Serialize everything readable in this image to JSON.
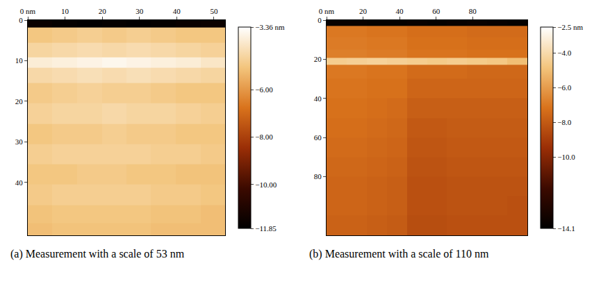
{
  "chart_data": [
    {
      "type": "heatmap",
      "title": "(a) Measurement with a scale of 53 nm",
      "x": [
        3.3,
        9.9,
        16.6,
        23.2,
        29.8,
        36.4,
        43.1,
        49.7
      ],
      "y": [
        0.5,
        3,
        8,
        10.5,
        13,
        18,
        23,
        28,
        33,
        38,
        43,
        48,
        52
      ],
      "z": [
        [
          -11.6,
          -11.7,
          -11.8,
          -11.7,
          -11.8,
          -11.7,
          -11.6,
          -11.5
        ],
        [
          -5.0,
          -4.9,
          -4.8,
          -4.9,
          -4.8,
          -4.9,
          -5.0,
          -5.0
        ],
        [
          -4.6,
          -4.5,
          -4.4,
          -4.5,
          -4.4,
          -4.5,
          -4.6,
          -4.7
        ],
        [
          -3.9,
          -3.8,
          -3.7,
          -3.6,
          -3.7,
          -3.8,
          -3.9,
          -4.1
        ],
        [
          -4.5,
          -4.4,
          -4.3,
          -4.4,
          -4.3,
          -4.4,
          -4.5,
          -4.6
        ],
        [
          -4.9,
          -4.8,
          -4.7,
          -4.8,
          -4.8,
          -4.9,
          -5.0,
          -5.0
        ],
        [
          -4.7,
          -4.6,
          -4.6,
          -4.5,
          -4.6,
          -4.6,
          -4.7,
          -4.8
        ],
        [
          -5.0,
          -4.9,
          -4.9,
          -4.8,
          -4.9,
          -4.9,
          -5.0,
          -5.0
        ],
        [
          -4.8,
          -4.7,
          -4.7,
          -4.7,
          -4.7,
          -4.8,
          -4.8,
          -4.9
        ],
        [
          -5.0,
          -5.0,
          -4.9,
          -4.9,
          -5.0,
          -5.0,
          -5.1,
          -5.1
        ],
        [
          -4.9,
          -4.8,
          -4.8,
          -4.8,
          -4.8,
          -4.9,
          -4.9,
          -5.0
        ],
        [
          -5.1,
          -5.0,
          -5.0,
          -5.0,
          -5.0,
          -5.1,
          -5.1,
          -5.2
        ],
        [
          -5.2,
          -5.1,
          -5.1,
          -5.1,
          -5.1,
          -5.2,
          -5.2,
          -5.2
        ]
      ],
      "xlim": [
        0,
        53
      ],
      "ylim": [
        53,
        0
      ],
      "xticks": [
        {
          "value": 0,
          "label": "0 nm"
        },
        10,
        20,
        30,
        40,
        50
      ],
      "yticks": [
        0,
        10,
        20,
        30,
        40
      ],
      "colorbar": {
        "range": [
          -11.85,
          -3.36
        ],
        "ticks": [
          {
            "value": -3.36,
            "label": "−3.36 nm"
          },
          {
            "value": -6,
            "label": "−6.00"
          },
          {
            "value": -8,
            "label": "−8.00"
          },
          {
            "value": -10,
            "label": "−10.00"
          },
          {
            "value": -11.85,
            "label": "−11.85"
          }
        ]
      }
    },
    {
      "type": "heatmap",
      "title": "(b) Measurement with a scale of 110 nm",
      "x": [
        5.5,
        16.5,
        27.5,
        38.5,
        49.5,
        60.5,
        71.5,
        82.5,
        93.5,
        104.5
      ],
      "y": [
        0.8,
        5,
        12,
        18,
        20.5,
        25,
        35,
        45,
        55,
        65,
        75,
        85,
        95,
        105
      ],
      "z": [
        [
          -13.8,
          -13.8,
          -13.9,
          -13.9,
          -13.8,
          -13.9,
          -13.8,
          -13.7,
          -13.8,
          -13.9
        ],
        [
          -7.0,
          -7.0,
          -7.1,
          -7.1,
          -7.3,
          -7.3,
          -7.3,
          -7.4,
          -7.4,
          -7.4
        ],
        [
          -6.9,
          -6.9,
          -7.0,
          -7.0,
          -7.2,
          -7.2,
          -7.2,
          -7.3,
          -7.3,
          -7.3
        ],
        [
          -6.8,
          -6.8,
          -6.9,
          -6.9,
          -7.1,
          -7.1,
          -7.1,
          -7.2,
          -7.2,
          -7.2
        ],
        [
          -4.5,
          -4.4,
          -4.3,
          -4.4,
          -4.5,
          -4.6,
          -4.5,
          -4.6,
          -4.7,
          -5.0
        ],
        [
          -7.0,
          -7.0,
          -7.1,
          -7.1,
          -7.4,
          -7.4,
          -7.4,
          -7.5,
          -7.5,
          -7.5
        ],
        [
          -7.1,
          -7.1,
          -7.2,
          -7.2,
          -7.6,
          -7.6,
          -7.6,
          -7.6,
          -7.6,
          -7.6
        ],
        [
          -7.2,
          -7.2,
          -7.3,
          -7.4,
          -7.8,
          -7.8,
          -7.8,
          -7.8,
          -7.8,
          -7.8
        ],
        [
          -7.3,
          -7.3,
          -7.4,
          -7.5,
          -8.0,
          -8.0,
          -7.9,
          -7.9,
          -7.9,
          -7.9
        ],
        [
          -7.4,
          -7.4,
          -7.5,
          -7.6,
          -8.1,
          -8.1,
          -8.0,
          -8.0,
          -8.0,
          -8.0
        ],
        [
          -7.5,
          -7.5,
          -7.6,
          -7.7,
          -8.2,
          -8.2,
          -8.1,
          -8.1,
          -8.1,
          -8.1
        ],
        [
          -7.6,
          -7.6,
          -7.7,
          -7.8,
          -8.3,
          -8.3,
          -8.2,
          -8.2,
          -8.2,
          -8.2
        ],
        [
          -7.6,
          -7.6,
          -7.7,
          -7.8,
          -8.3,
          -8.3,
          -8.2,
          -8.2,
          -8.2,
          -8.3
        ],
        [
          -7.7,
          -7.7,
          -7.8,
          -7.9,
          -8.4,
          -8.4,
          -8.3,
          -8.3,
          -8.3,
          -8.3
        ]
      ],
      "xlim": [
        0,
        110
      ],
      "ylim": [
        110,
        0
      ],
      "xticks": [
        {
          "value": 0,
          "label": "0 nm"
        },
        20,
        40,
        60,
        80
      ],
      "yticks": [
        0,
        20,
        40,
        60,
        80
      ],
      "colorbar": {
        "range": [
          -14.1,
          -2.5
        ],
        "ticks": [
          {
            "value": -2.5,
            "label": "−2.5 nm"
          },
          {
            "value": -4,
            "label": "−4.0"
          },
          {
            "value": -6,
            "label": "−6.0"
          },
          {
            "value": -8,
            "label": "−8.0"
          },
          {
            "value": -10,
            "label": "−10.0"
          },
          {
            "value": -14.1,
            "label": "−14.1"
          }
        ]
      }
    }
  ]
}
